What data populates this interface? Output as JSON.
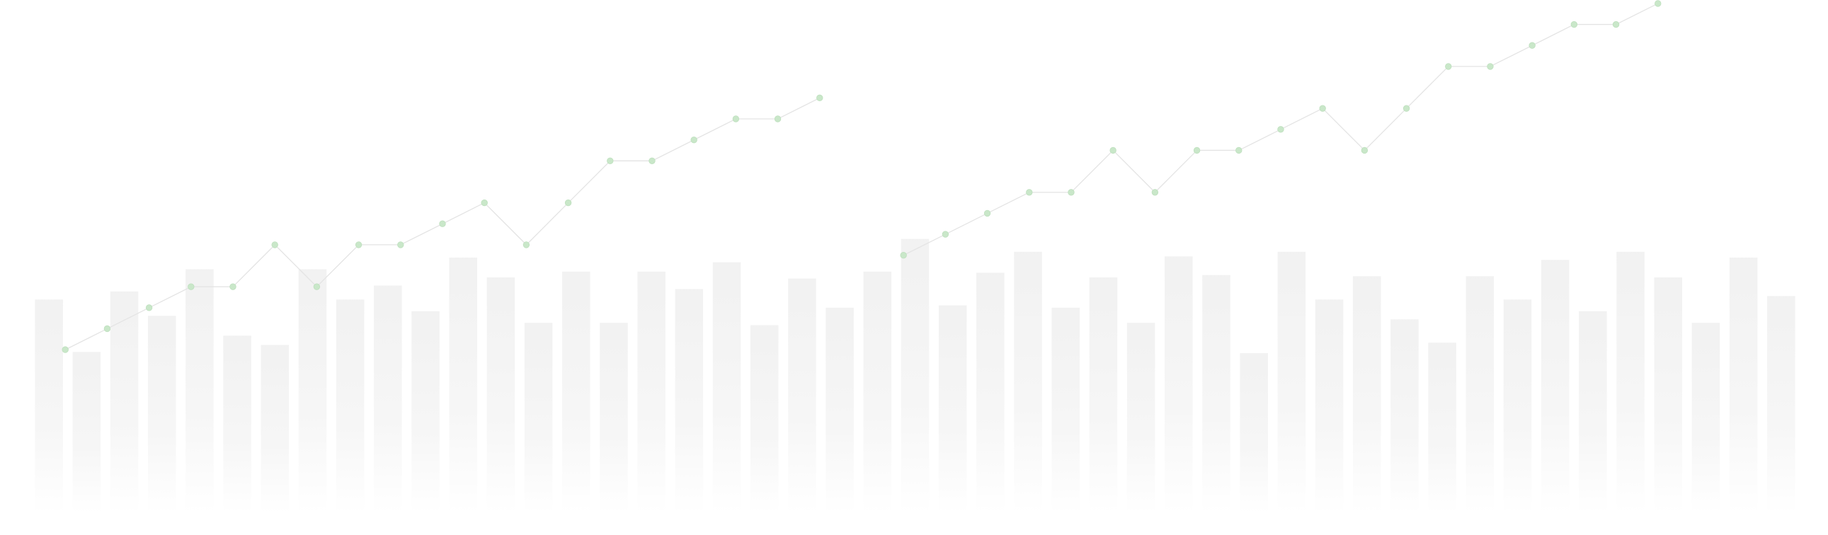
{
  "chart_data": [
    {
      "type": "bar",
      "color": "#efefef",
      "ylim": [
        0,
        440
      ],
      "values": [
        183,
        138,
        190,
        169,
        209,
        152,
        144,
        209,
        183,
        195,
        173,
        219,
        202,
        163,
        207,
        163,
        207,
        192,
        215,
        161,
        201,
        176,
        207,
        235,
        178,
        206,
        224,
        176,
        202,
        163,
        220,
        204,
        137,
        224,
        183,
        203,
        166,
        146,
        203,
        183,
        217,
        173,
        224,
        202,
        163,
        219,
        186
      ]
    },
    {
      "type": "line",
      "color": "#c9e7c9",
      "ylim": [
        0,
        440
      ],
      "values": [
        140,
        158,
        176,
        194,
        194,
        230,
        194,
        230,
        230,
        248,
        266,
        230,
        266,
        302,
        302,
        320,
        338,
        338,
        356,
        null,
        221,
        239,
        257,
        275,
        275,
        311,
        275,
        311,
        311,
        329,
        347,
        311,
        347,
        383,
        383,
        401,
        419,
        419,
        437
      ]
    }
  ]
}
